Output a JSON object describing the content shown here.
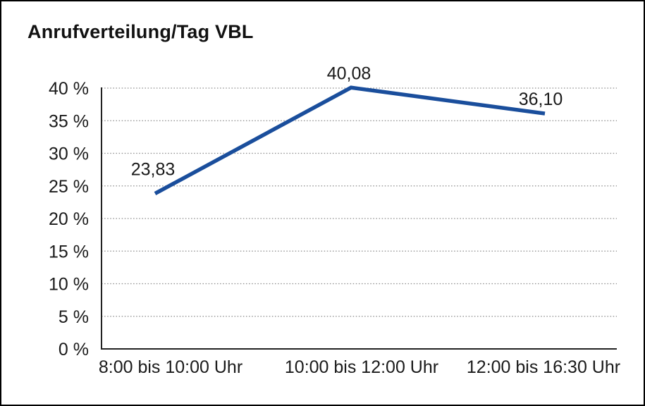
{
  "colors": {
    "line": "#1A4E9C",
    "grid": "#8A8A8A",
    "axis": "#222222",
    "text": "#1A1A1A",
    "frame_border": "#000000",
    "background": "#FFFFFF"
  },
  "chart_data": {
    "type": "line",
    "title": "Anrufverteilung/Tag VBL",
    "categories": [
      "8:00 bis 10:00 Uhr",
      "10:00 bis 12:00 Uhr",
      "12:00 bis 16:30 Uhr"
    ],
    "values": [
      23.83,
      40.08,
      36.1
    ],
    "data_labels": [
      "23,83",
      "40,08",
      "36,10"
    ],
    "ytick_labels": [
      "0 %",
      "5 %",
      "10 %",
      "15 %",
      "20 %",
      "25 %",
      "30 %",
      "35 %",
      "40 %"
    ],
    "ytick_step": 5,
    "ylim": [
      0,
      40
    ],
    "xlabel": "",
    "ylabel": "",
    "grid": "horizontal-dotted",
    "legend": "none"
  }
}
